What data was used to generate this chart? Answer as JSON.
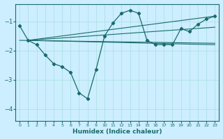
{
  "xlabel": "Humidex (Indice chaleur)",
  "bg_color": "#cceeff",
  "line_color": "#1a6b6b",
  "grid_color": "#aadddd",
  "xlim": [
    -0.5,
    23.5
  ],
  "ylim": [
    -4.4,
    -0.4
  ],
  "yticks": [
    -4,
    -3,
    -2,
    -1
  ],
  "xticks": [
    0,
    1,
    2,
    3,
    4,
    5,
    6,
    7,
    8,
    9,
    10,
    11,
    12,
    13,
    14,
    15,
    16,
    17,
    18,
    19,
    20,
    21,
    22,
    23
  ],
  "main_curve": {
    "x": [
      0,
      1,
      2,
      3,
      4,
      5,
      6,
      7,
      8,
      9,
      10,
      11,
      12,
      13,
      14,
      15,
      16,
      17,
      18,
      19,
      20,
      21,
      22,
      23
    ],
    "y": [
      -1.15,
      -1.65,
      -1.8,
      -2.15,
      -2.45,
      -2.55,
      -2.75,
      -3.45,
      -3.65,
      -2.65,
      -1.5,
      -1.05,
      -0.72,
      -0.62,
      -0.72,
      -1.65,
      -1.8,
      -1.8,
      -1.8,
      -1.25,
      -1.35,
      -1.1,
      -0.92,
      -0.82
    ]
  },
  "trend_lines": [
    {
      "x": [
        0,
        23
      ],
      "y": [
        -1.65,
        -1.75
      ]
    },
    {
      "x": [
        1,
        23
      ],
      "y": [
        -1.65,
        -1.8
      ]
    },
    {
      "x": [
        1,
        23
      ],
      "y": [
        -1.65,
        -0.82
      ]
    },
    {
      "x": [
        1,
        23
      ],
      "y": [
        -1.65,
        -1.2
      ]
    }
  ]
}
